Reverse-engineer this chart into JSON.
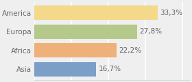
{
  "categories": [
    "America",
    "Europa",
    "Africa",
    "Asia"
  ],
  "values": [
    33.3,
    27.8,
    22.2,
    16.7
  ],
  "labels": [
    "33,3%",
    "27,8%",
    "22,2%",
    "16,7%"
  ],
  "bar_colors": [
    "#f5d98b",
    "#b5c98b",
    "#f0b07a",
    "#7b9fc7"
  ],
  "background_color": "#efefef",
  "xlim": [
    0,
    42
  ],
  "label_fontsize": 7.5,
  "tick_fontsize": 7.5,
  "bar_height": 0.78,
  "grid_color": "#ffffff",
  "text_color": "#666666"
}
